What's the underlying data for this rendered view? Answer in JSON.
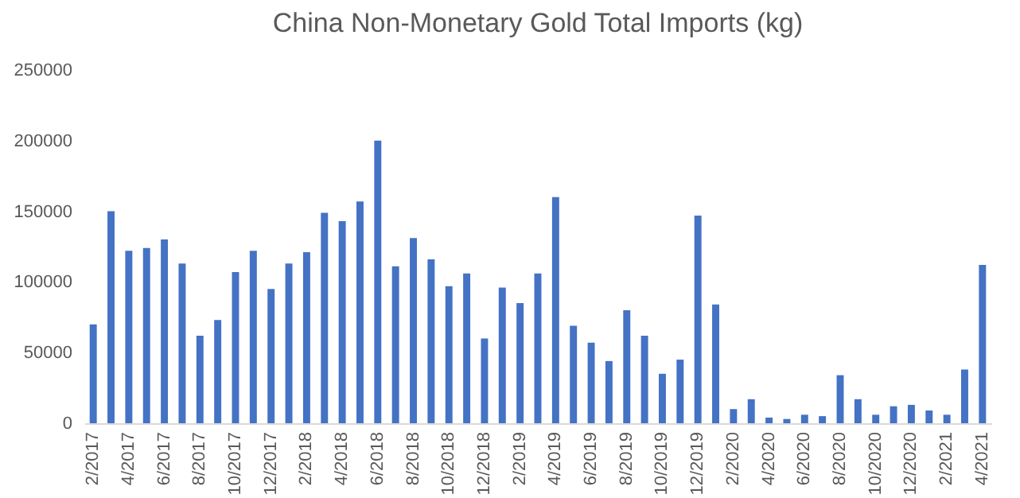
{
  "chart_data": {
    "type": "bar",
    "title": "China Non-Monetary Gold Total Imports (kg)",
    "categories": [
      "2/2017",
      null,
      "4/2017",
      null,
      "6/2017",
      null,
      "8/2017",
      null,
      "10/2017",
      null,
      "12/2017",
      null,
      "2/2018",
      null,
      "4/2018",
      null,
      "6/2018",
      null,
      "8/2018",
      null,
      "10/2018",
      null,
      "12/2018",
      null,
      "2/2019",
      null,
      "4/2019",
      null,
      "6/2019",
      null,
      "8/2019",
      null,
      "10/2019",
      null,
      "12/2019",
      null,
      "2/2020",
      null,
      "4/2020",
      null,
      "6/2020",
      null,
      "8/2020",
      null,
      "10/2020",
      null,
      "12/2020",
      null,
      "2/2021",
      null,
      "4/2021"
    ],
    "values": [
      70000,
      150000,
      122000,
      124000,
      130000,
      113000,
      62000,
      73000,
      107000,
      122000,
      95000,
      113000,
      121000,
      149000,
      143000,
      157000,
      200000,
      111000,
      131000,
      116000,
      97000,
      106000,
      60000,
      96000,
      85000,
      106000,
      160000,
      69000,
      57000,
      44000,
      80000,
      62000,
      35000,
      45000,
      147000,
      84000,
      10000,
      17000,
      4000,
      3000,
      6000,
      5000,
      34000,
      17000,
      6000,
      12000,
      13000,
      9000,
      6000,
      38000,
      112000
    ],
    "color": "#4472c4",
    "ylim": [
      0,
      250000
    ],
    "yticks": [
      0,
      50000,
      100000,
      150000,
      200000,
      250000
    ],
    "grid": false
  }
}
